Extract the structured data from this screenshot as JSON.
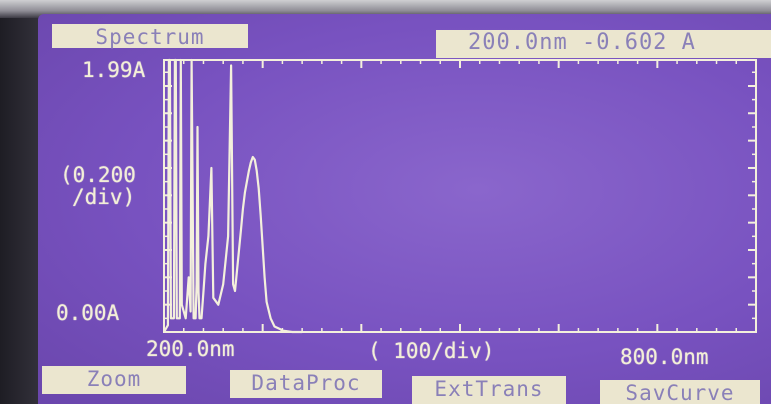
{
  "screen": {
    "mode_tab": "Spectrum",
    "cursor_readout": "200.0nm -0.602 A"
  },
  "plot": {
    "y_max_label": "1.99A",
    "y_scale_line1": "(0.200",
    "y_scale_line2": "/div)",
    "y_min_label": "0.00A",
    "x_min_label": "200.0nm",
    "x_scale_label": "( 100/div)",
    "x_max_label": "800.0nm",
    "trace_color": "#f4f0dc",
    "background_color": "#7852c0"
  },
  "softkeys": {
    "zoom": "Zoom",
    "dataproc": "DataProc",
    "exttrans": "ExtTrans",
    "savcurve": "SavCurve"
  },
  "chart_data": {
    "type": "line",
    "xlabel": "( 100/div)",
    "ylabel": "(0.200 /div)",
    "xlim": [
      200,
      800
    ],
    "ylim": [
      0,
      1.99
    ],
    "x_unit": "nm",
    "y_unit": "A",
    "grid": false,
    "series": [
      {
        "x": [
          200,
          204,
          205,
          206,
          207,
          210,
          211,
          212,
          213,
          216,
          217,
          218,
          222,
          225,
          227,
          228,
          230,
          232,
          233,
          234,
          235,
          236,
          238,
          240,
          242,
          245,
          248,
          250,
          255,
          260,
          265,
          268,
          270,
          272,
          274,
          276,
          278,
          280,
          282,
          284,
          286,
          288,
          290,
          292,
          294,
          296,
          298,
          300,
          302,
          304,
          308,
          312,
          318,
          320,
          330,
          340
        ],
        "y": [
          0,
          0.05,
          1.99,
          1.99,
          0.1,
          0.1,
          1.99,
          1.99,
          0.1,
          0.1,
          1.99,
          0.2,
          0.1,
          0.4,
          0.15,
          1.99,
          0.1,
          0.1,
          0.35,
          1.5,
          0.3,
          0.1,
          0.1,
          0.3,
          0.5,
          0.7,
          1.2,
          0.25,
          0.2,
          0.35,
          0.7,
          1.95,
          0.35,
          0.3,
          0.45,
          0.6,
          0.75,
          0.9,
          1.02,
          1.1,
          1.18,
          1.24,
          1.28,
          1.26,
          1.18,
          1.05,
          0.85,
          0.62,
          0.4,
          0.22,
          0.1,
          0.04,
          0.02,
          0.01,
          0,
          0
        ]
      }
    ]
  }
}
